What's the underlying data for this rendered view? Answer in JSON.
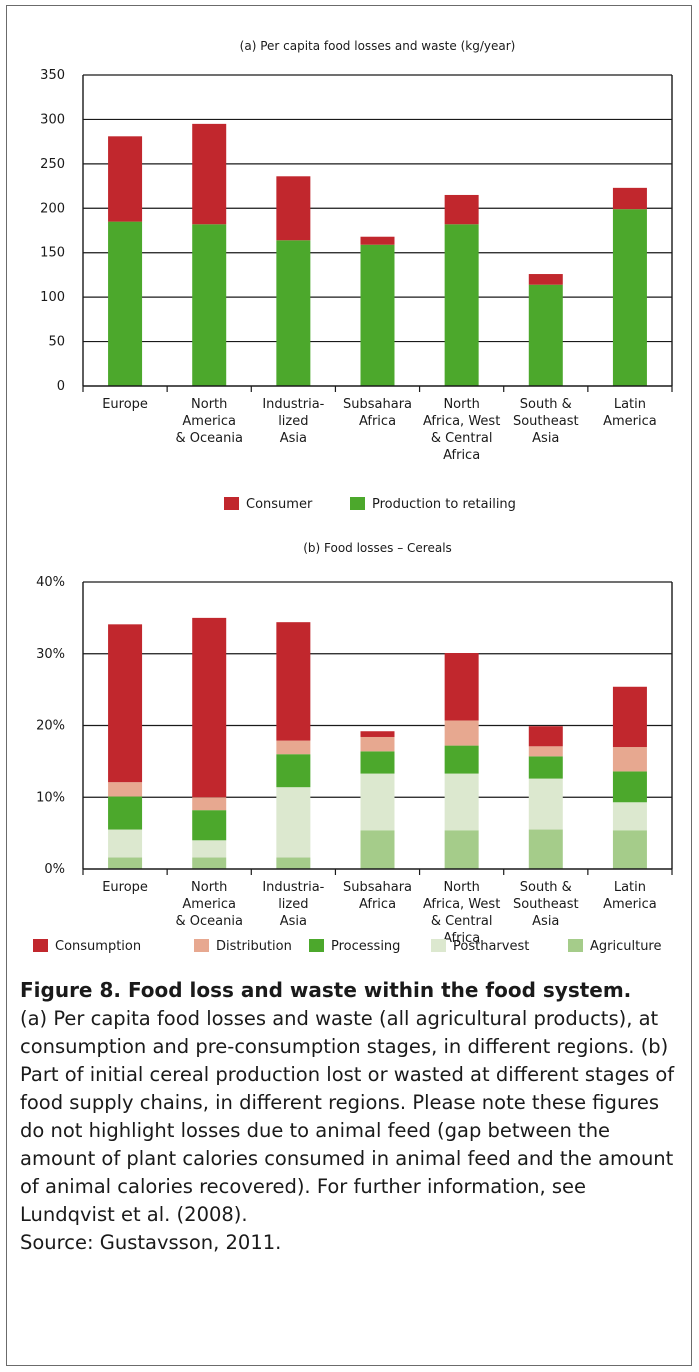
{
  "colors": {
    "consumer": "#c1272d",
    "production": "#4ca82c",
    "consumption": "#c1272d",
    "distribution": "#e7a890",
    "processing": "#4ca82c",
    "postharvest": "#dce8cf",
    "agriculture": "#a5cc8a",
    "gridline": "#1a1a1a",
    "frame": "#6b6b6b"
  },
  "chart_data": [
    {
      "type": "bar",
      "stacked": true,
      "title": "(a) Per capita food losses and waste (kg/year)",
      "xlabel": "",
      "ylabel": "",
      "categories": [
        [
          "Europe"
        ],
        [
          "North",
          "America",
          "& Oceania"
        ],
        [
          "Industria-",
          "lized",
          "Asia"
        ],
        [
          "Subsahara",
          "Africa"
        ],
        [
          "North",
          "Africa, West",
          "& Central",
          "Africa"
        ],
        [
          "South &",
          "Southeast",
          "Asia"
        ],
        [
          "Latin",
          "America"
        ]
      ],
      "ylim": [
        0,
        350
      ],
      "yticks": [
        0,
        50,
        100,
        150,
        200,
        250,
        300,
        350
      ],
      "ytick_labels": [
        "0",
        "50",
        "100",
        "150",
        "200",
        "250",
        "300",
        "350"
      ],
      "grid": true,
      "legend_position": "bottom",
      "series": [
        {
          "name": "Production to retailing",
          "color_key": "production",
          "values": [
            185,
            182,
            164,
            159,
            182,
            114,
            199
          ]
        },
        {
          "name": "Consumer",
          "color_key": "consumer",
          "values": [
            96,
            113,
            72,
            9,
            33,
            12,
            24
          ]
        }
      ],
      "legend": [
        {
          "name": "Consumer",
          "color_key": "consumer"
        },
        {
          "name": "Production to retailing",
          "color_key": "production"
        }
      ]
    },
    {
      "type": "bar",
      "stacked": true,
      "title": "(b) Food losses – Cereals",
      "xlabel": "",
      "ylabel": "",
      "categories": [
        [
          "Europe"
        ],
        [
          "North",
          "America",
          "& Oceania"
        ],
        [
          "Industria-",
          "lized",
          "Asia"
        ],
        [
          "Subsahara",
          "Africa"
        ],
        [
          "North",
          "Africa, West",
          "& Central",
          "Africa"
        ],
        [
          "South &",
          "Southeast",
          "Asia"
        ],
        [
          "Latin",
          "America"
        ]
      ],
      "ylim": [
        0,
        40
      ],
      "yticks": [
        0,
        10,
        20,
        30,
        40
      ],
      "ytick_labels": [
        "0%",
        "10%",
        "20%",
        "30%",
        "40%"
      ],
      "grid": true,
      "legend_position": "bottom",
      "series": [
        {
          "name": "Agriculture",
          "color_key": "agriculture",
          "values": [
            1.6,
            1.6,
            1.6,
            5.4,
            5.4,
            5.5,
            5.4
          ]
        },
        {
          "name": "Postharvest",
          "color_key": "postharvest",
          "values": [
            3.9,
            2.4,
            9.8,
            7.9,
            7.9,
            7.1,
            3.9
          ]
        },
        {
          "name": "Processing",
          "color_key": "processing",
          "values": [
            4.6,
            4.2,
            4.6,
            3.1,
            3.9,
            3.1,
            4.3
          ]
        },
        {
          "name": "Distribution",
          "color_key": "distribution",
          "values": [
            2.0,
            1.8,
            1.9,
            2.0,
            3.5,
            1.4,
            3.4
          ]
        },
        {
          "name": "Consumption",
          "color_key": "consumption",
          "values": [
            22.0,
            25.0,
            16.5,
            0.8,
            9.4,
            2.8,
            8.4
          ]
        }
      ],
      "legend": [
        {
          "name": "Consumption",
          "color_key": "consumption"
        },
        {
          "name": "Distribution",
          "color_key": "distribution"
        },
        {
          "name": "Processing",
          "color_key": "processing"
        },
        {
          "name": "Postharvest",
          "color_key": "postharvest"
        },
        {
          "name": "Agriculture",
          "color_key": "agriculture"
        }
      ]
    }
  ],
  "caption": {
    "title": "Figure 8. Food loss and waste within the food system.",
    "body": "(a) Per capita food losses and waste (all agricultural products), at consumption and pre-consumption stages, in different regions. (b) Part of initial cereal production lost or wasted at different stages of food supply chains, in different regions. Please note these figures do not highlight losses due to animal feed (gap between the amount of plant calories consumed in animal feed and the amount of animal calories recovered). For further information, see Lundqvist et al. (2008).",
    "source": "Source:  Gustavsson, 2011."
  }
}
